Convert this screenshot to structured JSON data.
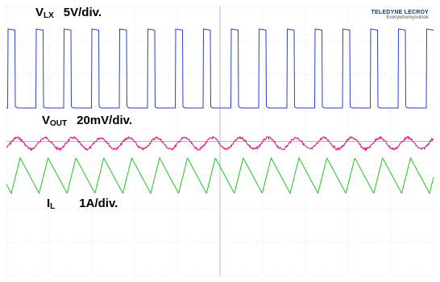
{
  "channels": [
    {
      "name": "V",
      "sub": "LX",
      "scale": "5V/div."
    },
    {
      "name": "V",
      "sub": "OUT",
      "scale": "20mV/div."
    },
    {
      "name": "I",
      "sub": "L",
      "scale": "1A/div."
    }
  ],
  "logo": {
    "brand": "TELEDYNE LECROY",
    "tagline": "Everywhereyoulook"
  }
}
